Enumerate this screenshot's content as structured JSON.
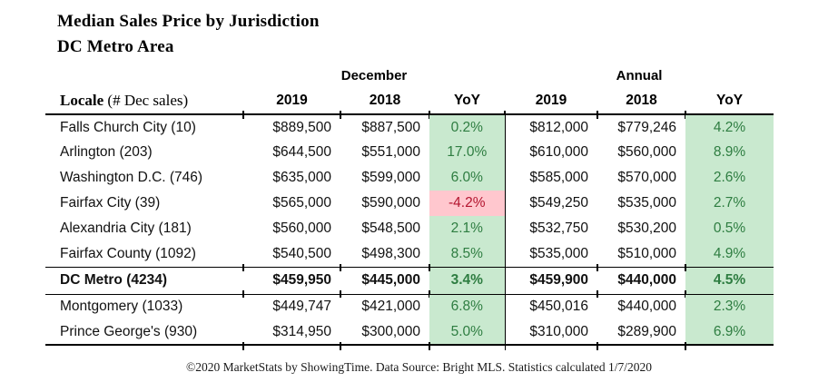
{
  "title": "Median Sales Price by Jurisdiction",
  "subtitle": "DC Metro Area",
  "table": {
    "group_headers": {
      "december": "December",
      "annual": "Annual"
    },
    "columns": {
      "locale": "Locale",
      "locale_note": " (# Dec sales)",
      "dec_2019": "2019",
      "dec_2018": "2018",
      "dec_yoy": "YoY",
      "ann_2019": "2019",
      "ann_2018": "2018",
      "ann_yoy": "YoY"
    },
    "rows": [
      {
        "locale": "Falls Church City (10)",
        "dec_2019": "$889,500",
        "dec_2018": "$887,500",
        "dec_yoy": "0.2%",
        "ann_2019": "$812,000",
        "ann_2018": "$779,246",
        "ann_yoy": "4.2%"
      },
      {
        "locale": "Arlington (203)",
        "dec_2019": "$644,500",
        "dec_2018": "$551,000",
        "dec_yoy": "17.0%",
        "ann_2019": "$610,000",
        "ann_2018": "$560,000",
        "ann_yoy": "8.9%"
      },
      {
        "locale": "Washington D.C. (746)",
        "dec_2019": "$635,000",
        "dec_2018": "$599,000",
        "dec_yoy": "6.0%",
        "ann_2019": "$585,000",
        "ann_2018": "$570,000",
        "ann_yoy": "2.6%"
      },
      {
        "locale": "Fairfax City (39)",
        "dec_2019": "$565,000",
        "dec_2018": "$590,000",
        "dec_yoy": "-4.2%",
        "ann_2019": "$549,250",
        "ann_2018": "$535,000",
        "ann_yoy": "2.7%"
      },
      {
        "locale": "Alexandria City (181)",
        "dec_2019": "$560,000",
        "dec_2018": "$548,500",
        "dec_yoy": "2.1%",
        "ann_2019": "$532,750",
        "ann_2018": "$530,200",
        "ann_yoy": "0.5%"
      },
      {
        "locale": "Fairfax County (1092)",
        "dec_2019": "$540,500",
        "dec_2018": "$498,300",
        "dec_yoy": "8.5%",
        "ann_2019": "$535,000",
        "ann_2018": "$510,000",
        "ann_yoy": "4.9%"
      },
      {
        "locale": "DC Metro (4234)",
        "dec_2019": "$459,950",
        "dec_2018": "$445,000",
        "dec_yoy": "3.4%",
        "ann_2019": "$459,900",
        "ann_2018": "$440,000",
        "ann_yoy": "4.5%"
      },
      {
        "locale": "Montgomery (1033)",
        "dec_2019": "$449,747",
        "dec_2018": "$421,000",
        "dec_yoy": "6.8%",
        "ann_2019": "$450,016",
        "ann_2018": "$440,000",
        "ann_yoy": "2.3%"
      },
      {
        "locale": "Prince George's (930)",
        "dec_2019": "$314,950",
        "dec_2018": "$300,000",
        "dec_yoy": "5.0%",
        "ann_2019": "$310,000",
        "ann_2018": "$289,900",
        "ann_yoy": "6.9%"
      }
    ]
  },
  "footer": "©2020 MarketStats by ShowingTime. Data Source: Bright MLS. Statistics calculated 1/7/2020",
  "colors": {
    "positive_bg": "#c9e9cf",
    "positive_text": "#2e7d41",
    "negative_bg": "#ffc7ce",
    "negative_text": "#b3152f"
  }
}
